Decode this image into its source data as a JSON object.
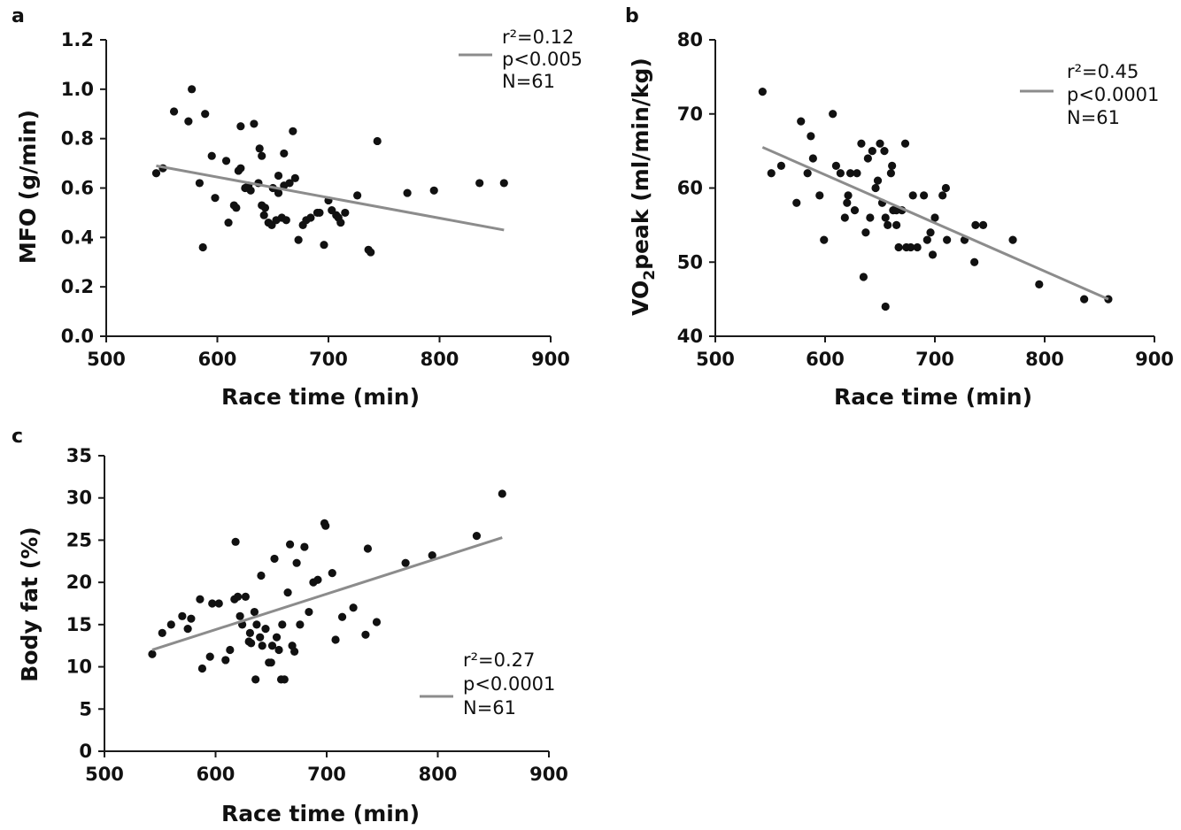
{
  "chart_data": [
    {
      "panel": "a",
      "type": "scatter",
      "title": "",
      "xlabel": "Race time (min)",
      "ylabel": "MFO (g/min)",
      "xlim": [
        500,
        900
      ],
      "ylim": [
        0.0,
        1.2
      ],
      "xticks": [
        "500",
        "600",
        "700",
        "800",
        "900"
      ],
      "yticks": [
        "0.0",
        "0.2",
        "0.4",
        "0.6",
        "0.8",
        "1.0",
        "1.2"
      ],
      "stats": [
        "r²=0.12",
        "p<0.005",
        "N=61"
      ],
      "legend_position": "top-right",
      "series": [
        {
          "points": [
            [
              545,
              0.66
            ],
            [
              551,
              0.68
            ],
            [
              561,
              0.91
            ],
            [
              574,
              0.87
            ],
            [
              577,
              1.0
            ],
            [
              584,
              0.62
            ],
            [
              589,
              0.9
            ],
            [
              595,
              0.73
            ],
            [
              598,
              0.56
            ],
            [
              608,
              0.71
            ],
            [
              610,
              0.46
            ],
            [
              615,
              0.53
            ],
            [
              617,
              0.52
            ],
            [
              619,
              0.67
            ],
            [
              621,
              0.68
            ],
            [
              621,
              0.85
            ],
            [
              625,
              0.6
            ],
            [
              628,
              0.61
            ],
            [
              630,
              0.59
            ],
            [
              633,
              0.86
            ],
            [
              637,
              0.62
            ],
            [
              638,
              0.76
            ],
            [
              640,
              0.53
            ],
            [
              640,
              0.73
            ],
            [
              642,
              0.49
            ],
            [
              643,
              0.52
            ],
            [
              646,
              0.46
            ],
            [
              649,
              0.45
            ],
            [
              650,
              0.6
            ],
            [
              653,
              0.47
            ],
            [
              655,
              0.58
            ],
            [
              655,
              0.65
            ],
            [
              658,
              0.48
            ],
            [
              660,
              0.74
            ],
            [
              662,
              0.47
            ],
            [
              665,
              0.62
            ],
            [
              668,
              0.83
            ],
            [
              670,
              0.64
            ],
            [
              673,
              0.39
            ],
            [
              677,
              0.45
            ],
            [
              680,
              0.47
            ],
            [
              684,
              0.48
            ],
            [
              690,
              0.5
            ],
            [
              692,
              0.5
            ],
            [
              696,
              0.37
            ],
            [
              700,
              0.55
            ],
            [
              703,
              0.51
            ],
            [
              707,
              0.49
            ],
            [
              709,
              0.48
            ],
            [
              711,
              0.46
            ],
            [
              715,
              0.5
            ],
            [
              726,
              0.57
            ],
            [
              736,
              0.35
            ],
            [
              738,
              0.34
            ],
            [
              744,
              0.79
            ],
            [
              771,
              0.58
            ],
            [
              795,
              0.59
            ],
            [
              836,
              0.62
            ],
            [
              858,
              0.62
            ],
            [
              587,
              0.36
            ],
            [
              660,
              0.61
            ]
          ]
        }
      ],
      "fit": [
        [
          545,
          0.69
        ],
        [
          858,
          0.43
        ]
      ]
    },
    {
      "panel": "b",
      "type": "scatter",
      "title": "",
      "xlabel": "Race time (min)",
      "ylabel_parts": [
        "VO",
        "2",
        "peak (ml/min/kg)"
      ],
      "xlim": [
        500,
        900
      ],
      "ylim": [
        40,
        80
      ],
      "xticks": [
        "500",
        "600",
        "700",
        "800",
        "900"
      ],
      "yticks": [
        "40",
        "50",
        "60",
        "70",
        "80"
      ],
      "stats": [
        "r²=0.45",
        "p<0.0001",
        "N=61"
      ],
      "legend_position": "top-right",
      "series": [
        {
          "points": [
            [
              543,
              73
            ],
            [
              551,
              62
            ],
            [
              560,
              63
            ],
            [
              574,
              58
            ],
            [
              578,
              69
            ],
            [
              584,
              62
            ],
            [
              587,
              67
            ],
            [
              589,
              64
            ],
            [
              595,
              59
            ],
            [
              599,
              53
            ],
            [
              607,
              70
            ],
            [
              610,
              63
            ],
            [
              614,
              62
            ],
            [
              618,
              56
            ],
            [
              620,
              58
            ],
            [
              621,
              59
            ],
            [
              623,
              62
            ],
            [
              627,
              57
            ],
            [
              629,
              62
            ],
            [
              633,
              66
            ],
            [
              635,
              48
            ],
            [
              637,
              54
            ],
            [
              639,
              64
            ],
            [
              641,
              56
            ],
            [
              643,
              65
            ],
            [
              646,
              60
            ],
            [
              648,
              61
            ],
            [
              650,
              66
            ],
            [
              652,
              58
            ],
            [
              654,
              65
            ],
            [
              655,
              56
            ],
            [
              657,
              55
            ],
            [
              660,
              62
            ],
            [
              661,
              63
            ],
            [
              662,
              57
            ],
            [
              665,
              55
            ],
            [
              667,
              52
            ],
            [
              670,
              57
            ],
            [
              673,
              66
            ],
            [
              674,
              52
            ],
            [
              678,
              52
            ],
            [
              680,
              59
            ],
            [
              684,
              52
            ],
            [
              690,
              59
            ],
            [
              693,
              53
            ],
            [
              696,
              54
            ],
            [
              698,
              51
            ],
            [
              700,
              56
            ],
            [
              707,
              59
            ],
            [
              710,
              60
            ],
            [
              711,
              53
            ],
            [
              727,
              53
            ],
            [
              736,
              50
            ],
            [
              737,
              55
            ],
            [
              744,
              55
            ],
            [
              771,
              53
            ],
            [
              795,
              47
            ],
            [
              836,
              45
            ],
            [
              858,
              45
            ],
            [
              655,
              44
            ],
            [
              665,
              57
            ]
          ]
        }
      ],
      "fit": [
        [
          543,
          65.5
        ],
        [
          858,
          45
        ]
      ]
    },
    {
      "panel": "c",
      "type": "scatter",
      "title": "",
      "xlabel": "Race time (min)",
      "ylabel": "Body fat (%)",
      "xlim": [
        500,
        900
      ],
      "ylim": [
        0,
        35
      ],
      "xticks": [
        "500",
        "600",
        "700",
        "800",
        "900"
      ],
      "yticks": [
        "0",
        "5",
        "10",
        "15",
        "20",
        "25",
        "30",
        "35"
      ],
      "stats": [
        "r²=0.27",
        "p<0.0001",
        "N=61"
      ],
      "legend_position": "bottom-right",
      "series": [
        {
          "points": [
            [
              543,
              11.5
            ],
            [
              552,
              14
            ],
            [
              560,
              15
            ],
            [
              570,
              16
            ],
            [
              575,
              14.5
            ],
            [
              578,
              15.7
            ],
            [
              586,
              18
            ],
            [
              588,
              9.8
            ],
            [
              595,
              11.2
            ],
            [
              597,
              17.5
            ],
            [
              603,
              17.5
            ],
            [
              609,
              10.8
            ],
            [
              613,
              12
            ],
            [
              617,
              18
            ],
            [
              618,
              24.8
            ],
            [
              620,
              18.3
            ],
            [
              622,
              16
            ],
            [
              624,
              15
            ],
            [
              627,
              18.3
            ],
            [
              630,
              13
            ],
            [
              631,
              14
            ],
            [
              632,
              12.8
            ],
            [
              635,
              16.5
            ],
            [
              636,
              8.5
            ],
            [
              637,
              15
            ],
            [
              640,
              13.5
            ],
            [
              641,
              20.8
            ],
            [
              642,
              12.5
            ],
            [
              645,
              14.5
            ],
            [
              648,
              10.5
            ],
            [
              650,
              10.5
            ],
            [
              651,
              12.5
            ],
            [
              653,
              22.8
            ],
            [
              655,
              13.5
            ],
            [
              657,
              12
            ],
            [
              659,
              8.5
            ],
            [
              662,
              8.5
            ],
            [
              665,
              18.8
            ],
            [
              667,
              24.5
            ],
            [
              669,
              12.5
            ],
            [
              671,
              11.8
            ],
            [
              673,
              22.3
            ],
            [
              676,
              15
            ],
            [
              680,
              24.2
            ],
            [
              684,
              16.5
            ],
            [
              688,
              20
            ],
            [
              692,
              20.3
            ],
            [
              698,
              27
            ],
            [
              699,
              26.7
            ],
            [
              705,
              21.1
            ],
            [
              708,
              13.2
            ],
            [
              714,
              15.9
            ],
            [
              724,
              17
            ],
            [
              735,
              13.8
            ],
            [
              737,
              24
            ],
            [
              745,
              15.3
            ],
            [
              771,
              22.3
            ],
            [
              795,
              23.2
            ],
            [
              835,
              25.5
            ],
            [
              858,
              30.5
            ],
            [
              660,
              15
            ]
          ]
        }
      ],
      "fit": [
        [
          543,
          12
        ],
        [
          858,
          25.3
        ]
      ]
    }
  ]
}
